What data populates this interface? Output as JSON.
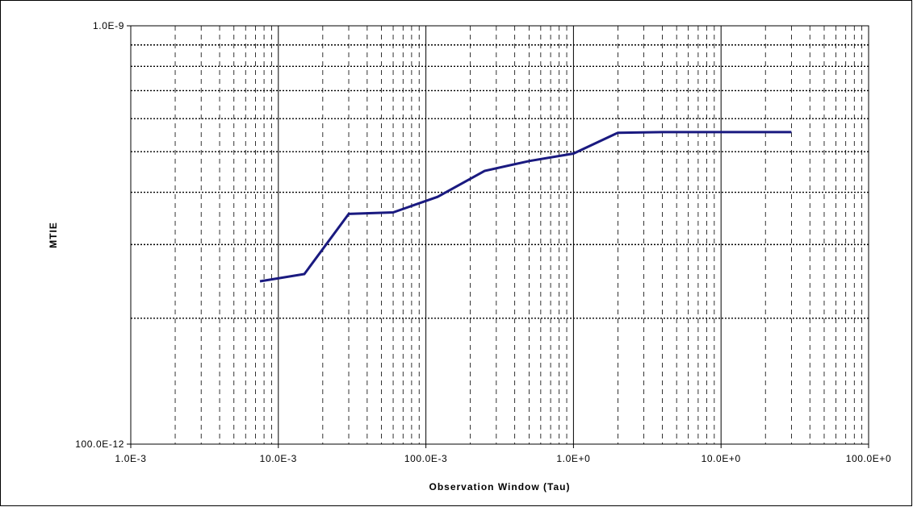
{
  "chart_data": {
    "type": "line",
    "title": "",
    "xlabel": "Observation Window (Tau)",
    "ylabel": "MTIE",
    "x_scale": "log",
    "y_scale": "log",
    "xlim": [
      0.001,
      100
    ],
    "ylim": [
      1e-10,
      1e-09
    ],
    "x_tick_labels": [
      "1.0E-3",
      "10.0E-3",
      "100.0E-3",
      "1.0E+0",
      "10.0E+0",
      "100.0E+0"
    ],
    "y_tick_labels": [
      "1.0E-9",
      "100.0E-12"
    ],
    "grid": true,
    "legend": "none",
    "series": [
      {
        "color": "#1a1a80",
        "x": [
          0.0075,
          0.015,
          0.03,
          0.06,
          0.12,
          0.25,
          0.5,
          1.0,
          2.0,
          4.0,
          10.0,
          30.0
        ],
        "y": [
          2.45e-10,
          2.55e-10,
          3.55e-10,
          3.58e-10,
          3.9e-10,
          4.5e-10,
          4.75e-10,
          4.95e-10,
          5.55e-10,
          5.57e-10,
          5.57e-10,
          5.57e-10
        ]
      }
    ]
  }
}
